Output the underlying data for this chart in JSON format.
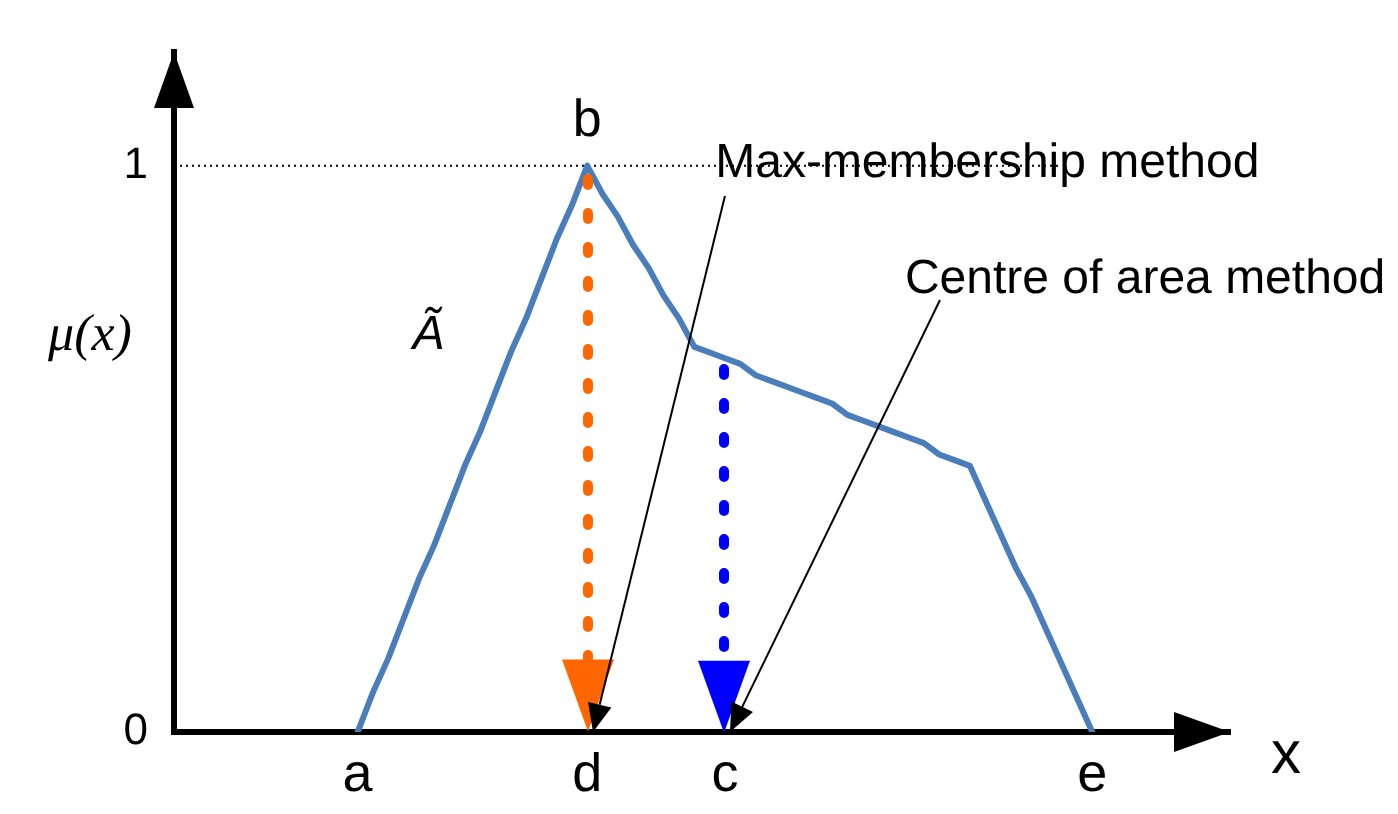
{
  "chart_data": {
    "type": "line",
    "ylabel": "μ(x)",
    "xlabel": "x",
    "categories": [
      null,
      null,
      null,
      null,
      null,
      null,
      null,
      null,
      null,
      null,
      null,
      null,
      "a",
      null,
      null,
      null,
      null,
      null,
      null,
      null,
      null,
      null,
      null,
      null,
      null,
      null,
      null,
      "d",
      null,
      null,
      null,
      null,
      null,
      null,
      null,
      null,
      "c",
      null,
      null,
      null,
      null,
      null,
      null,
      null,
      null,
      null,
      null,
      null,
      null,
      null,
      null,
      null,
      null,
      null,
      null,
      null,
      null,
      null,
      null,
      null,
      "e",
      null,
      null,
      null,
      null,
      null,
      null,
      null,
      null,
      null
    ],
    "annotations": [
      {
        "text": "b",
        "x": "d",
        "y": 1
      },
      "Max-membership method",
      "Centre of area method"
    ],
    "series": [
      {
        "name": "Ã",
        "type": "line",
        "color": "#4a7ebb",
        "line_style": "solid",
        "marker": "none",
        "values": [
          null,
          null,
          null,
          null,
          null,
          null,
          null,
          null,
          null,
          null,
          null,
          null,
          0,
          0.07,
          0.13,
          0.2,
          0.27,
          0.33,
          0.4,
          0.47,
          0.53,
          0.6,
          0.67,
          0.73,
          0.8,
          0.87,
          0.93,
          1,
          0.95,
          0.91,
          0.86,
          0.82,
          0.77,
          0.73,
          0.68,
          0.67,
          0.66,
          0.65,
          0.63,
          0.62,
          0.61,
          0.6,
          0.59,
          0.58,
          0.56,
          0.55,
          0.54,
          0.53,
          0.52,
          0.51,
          0.49,
          0.48,
          0.47,
          0.41,
          0.35,
          0.29,
          0.24,
          0.18,
          0.12,
          0.06,
          0,
          null,
          null,
          null,
          null,
          null,
          null,
          null,
          null,
          null
        ]
      }
    ],
    "ref_lines": [
      {
        "axis": "y",
        "value": 1,
        "color": "#000000",
        "line_style": "dotted"
      }
    ],
    "ylim": [
      0,
      1.2
    ],
    "yticks": [
      0,
      1
    ],
    "grid": false,
    "legend": false
  }
}
